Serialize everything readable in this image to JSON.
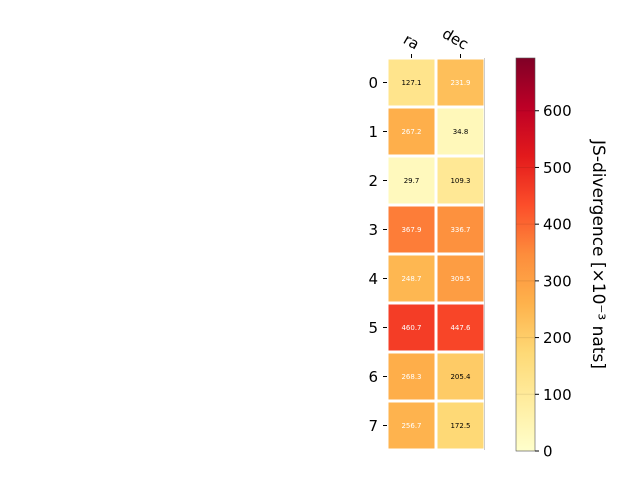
{
  "chart_data": {
    "type": "heatmap",
    "columns": [
      "ra",
      "dec"
    ],
    "rows": [
      "0",
      "1",
      "2",
      "3",
      "4",
      "5",
      "6",
      "7"
    ],
    "values": [
      [
        127.1,
        231.9
      ],
      [
        267.2,
        34.8
      ],
      [
        29.7,
        109.3
      ],
      [
        367.9,
        336.7
      ],
      [
        248.7,
        309.5
      ],
      [
        460.7,
        447.6
      ],
      [
        268.3,
        205.4
      ],
      [
        256.7,
        172.5
      ]
    ],
    "value_labels": [
      [
        "127.1",
        "231.9"
      ],
      [
        "267.2",
        "34.8"
      ],
      [
        "29.7",
        "109.3"
      ],
      [
        "367.9",
        "336.7"
      ],
      [
        "248.7",
        "309.5"
      ],
      [
        "460.7",
        "447.6"
      ],
      [
        "268.3",
        "205.4"
      ],
      [
        "256.7",
        "172.5"
      ]
    ],
    "colormap": "YlOrRd",
    "color_range": [
      0,
      693
    ],
    "colorbar": {
      "label": "JS-divergence [×10⁻³ nats]",
      "ticks": [
        0,
        100,
        200,
        300,
        400,
        500,
        600
      ],
      "tick_labels": [
        "0",
        "100",
        "200",
        "300",
        "400",
        "500",
        "600"
      ],
      "placement": "right"
    },
    "column_labels_position": "top",
    "column_labels_rotation": "diagonal",
    "grid": false
  }
}
